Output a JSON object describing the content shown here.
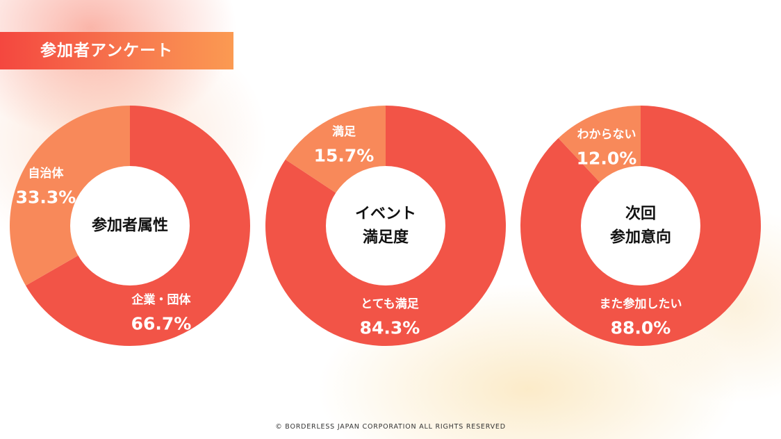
{
  "header": {
    "title": "参加者アンケート"
  },
  "footer": {
    "text": "© BORDERLESS JAPAN CORPORATION ALL RIGHTS RESERVED"
  },
  "colors": {
    "major": "#f25447",
    "minor": "#f8895a",
    "center": "#ffffff",
    "label": "#ffffff",
    "centerText": "#111111"
  },
  "chart_data": [
    {
      "type": "pie",
      "center_label": [
        "参加者属性"
      ],
      "slices": [
        {
          "label": "企業・団体",
          "value": 66.7,
          "display": "66.7%"
        },
        {
          "label": "自治体",
          "value": 33.3,
          "display": "33.3%"
        }
      ]
    },
    {
      "type": "pie",
      "center_label": [
        "イベント",
        "満足度"
      ],
      "slices": [
        {
          "label": "とても満足",
          "value": 84.3,
          "display": "84.3%"
        },
        {
          "label": "満足",
          "value": 15.7,
          "display": "15.7%"
        }
      ]
    },
    {
      "type": "pie",
      "center_label": [
        "次回",
        "参加意向"
      ],
      "slices": [
        {
          "label": "また参加したい",
          "value": 88.0,
          "display": "88.0%"
        },
        {
          "label": "わからない",
          "value": 12.0,
          "display": "12.0%"
        }
      ]
    }
  ]
}
